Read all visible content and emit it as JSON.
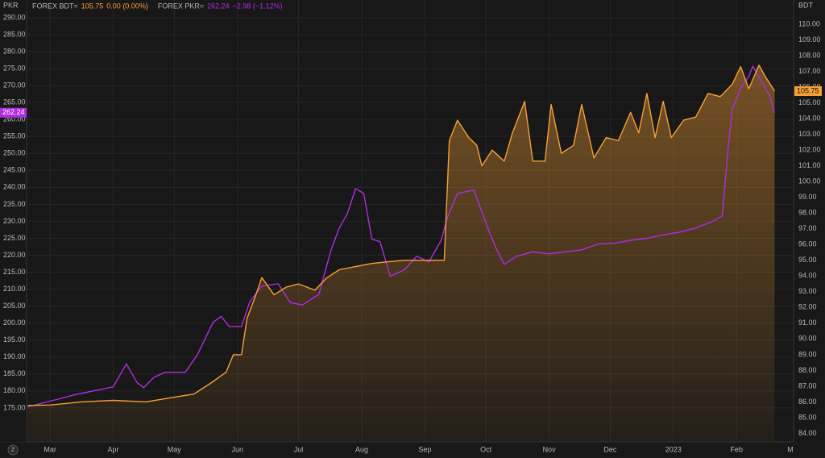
{
  "chart_data": {
    "type": "line",
    "legend": [
      {
        "name": "FOREX BDT=",
        "last": "105.75",
        "change": "0.00 (0.00%)",
        "color": "#f7a035"
      },
      {
        "name": "FOREX PKR=",
        "last": "262.24",
        "change": "−2.98 (−1.12%)",
        "color": "#b02ce0"
      }
    ],
    "y_axis_label": "PKR",
    "y2_axis_label": "BDT",
    "zoom_icon": "Z",
    "grid": true,
    "grid_color": "#262626",
    "background": "#181818",
    "xlim": [
      47.5,
      424
    ],
    "xticks": [
      {
        "value": 59,
        "label": "Mar"
      },
      {
        "value": 90,
        "label": "Apr"
      },
      {
        "value": 120,
        "label": "May"
      },
      {
        "value": 151,
        "label": "Jun"
      },
      {
        "value": 181,
        "label": "Jul"
      },
      {
        "value": 212,
        "label": "Aug"
      },
      {
        "value": 243,
        "label": "Sep"
      },
      {
        "value": 273,
        "label": "Oct"
      },
      {
        "value": 304,
        "label": "Nov"
      },
      {
        "value": 334,
        "label": "Dec"
      },
      {
        "value": 365,
        "label": "2023"
      },
      {
        "value": 396,
        "label": "Feb"
      },
      {
        "value": 424,
        "label": "Mar"
      }
    ],
    "ylim": [
      165,
      295.2
    ],
    "yticks": [
      {
        "value": 175,
        "label": "175.00"
      },
      {
        "value": 180,
        "label": "180.00"
      },
      {
        "value": 185,
        "label": "185.00"
      },
      {
        "value": 190,
        "label": "190.00"
      },
      {
        "value": 195,
        "label": "195.00"
      },
      {
        "value": 200,
        "label": "200.00"
      },
      {
        "value": 205,
        "label": "205.00"
      },
      {
        "value": 210,
        "label": "210.00"
      },
      {
        "value": 215,
        "label": "215.00"
      },
      {
        "value": 220,
        "label": "220.00"
      },
      {
        "value": 225,
        "label": "225.00"
      },
      {
        "value": 230,
        "label": "230.00"
      },
      {
        "value": 235,
        "label": "235.00"
      },
      {
        "value": 240,
        "label": "240.00"
      },
      {
        "value": 245,
        "label": "245.00"
      },
      {
        "value": 250,
        "label": "250.00"
      },
      {
        "value": 255,
        "label": "255.00"
      },
      {
        "value": 260,
        "label": "260.00"
      },
      {
        "value": 265,
        "label": "265.00"
      },
      {
        "value": 270,
        "label": "270.00"
      },
      {
        "value": 275,
        "label": "275.00"
      },
      {
        "value": 280,
        "label": "280.00"
      },
      {
        "value": 285,
        "label": "285.00"
      },
      {
        "value": 290,
        "label": "290.00"
      }
    ],
    "y2lim": [
      83.46,
      111.54
    ],
    "y2ticks": [
      {
        "value": 84,
        "label": "84.00"
      },
      {
        "value": 85,
        "label": "85.00"
      },
      {
        "value": 86,
        "label": "86.00"
      },
      {
        "value": 87,
        "label": "87.00"
      },
      {
        "value": 88,
        "label": "88.00"
      },
      {
        "value": 89,
        "label": "89.00"
      },
      {
        "value": 90,
        "label": "90.00"
      },
      {
        "value": 91,
        "label": "91.00"
      },
      {
        "value": 92,
        "label": "92.00"
      },
      {
        "value": 93,
        "label": "93.00"
      },
      {
        "value": 94,
        "label": "94.00"
      },
      {
        "value": 95,
        "label": "95.00"
      },
      {
        "value": 96,
        "label": "96.00"
      },
      {
        "value": 97,
        "label": "97.00"
      },
      {
        "value": 98,
        "label": "98.00"
      },
      {
        "value": 99,
        "label": "99.00"
      },
      {
        "value": 100,
        "label": "100.00"
      },
      {
        "value": 101,
        "label": "101.00"
      },
      {
        "value": 102,
        "label": "102.00"
      },
      {
        "value": 103,
        "label": "103.00"
      },
      {
        "value": 104,
        "label": "104.00"
      },
      {
        "value": 105,
        "label": "105.00"
      },
      {
        "value": 106,
        "label": "106.00"
      },
      {
        "value": 107,
        "label": "107.00"
      },
      {
        "value": 108,
        "label": "108.00"
      },
      {
        "value": 109,
        "label": "109.00"
      },
      {
        "value": 110,
        "label": "110.00"
      }
    ],
    "series": [
      {
        "name": "FOREX BDT=",
        "color": "#f7a035",
        "axis": "y2",
        "area": true,
        "x": [
          48,
          59,
          74.5,
          90,
          106,
          120,
          129.6,
          138,
          145.5,
          149,
          153,
          155.7,
          159.5,
          163,
          169,
          175,
          181,
          189,
          195,
          201,
          209,
          217,
          224.7,
          233,
          240,
          252.5,
          255,
          259,
          264.6,
          268.5,
          271,
          276,
          282,
          286,
          292,
          296,
          302,
          305,
          310,
          316,
          320,
          326,
          332,
          338,
          344,
          348,
          352,
          356,
          360,
          364,
          370,
          376,
          382,
          388,
          394,
          398,
          402,
          407,
          410,
          414.7
        ],
        "values": [
          85.77,
          85.8,
          86.0,
          86.1,
          86.0,
          86.3,
          86.5,
          87.2,
          87.9,
          89.0,
          89.0,
          91.3,
          92.6,
          93.9,
          92.8,
          93.3,
          93.5,
          93.1,
          93.9,
          94.4,
          94.6,
          94.8,
          94.9,
          95.0,
          95.0,
          95.0,
          102.6,
          103.9,
          102.8,
          102.3,
          101.0,
          102.0,
          101.3,
          103.1,
          105.1,
          101.3,
          101.3,
          104.9,
          101.8,
          102.3,
          104.9,
          101.5,
          102.8,
          102.6,
          104.4,
          103.1,
          105.6,
          102.8,
          105.1,
          102.8,
          103.9,
          104.1,
          105.6,
          105.4,
          106.2,
          107.3,
          105.9,
          107.4,
          106.7,
          105.75
        ]
      },
      {
        "name": "FOREX PKR=",
        "color": "#b02ce0",
        "x": [
          48,
          59,
          72,
          90,
          96.5,
          101.7,
          105,
          110,
          115.5,
          125.4,
          131.4,
          139,
          143,
          147,
          153,
          157,
          163,
          171,
          177,
          183,
          191,
          197,
          201,
          205,
          209,
          213,
          217,
          221,
          226,
          233,
          239,
          245,
          251,
          254,
          259,
          267,
          271,
          275,
          278,
          282,
          288,
          296,
          304,
          312,
          320,
          328,
          336,
          344,
          352,
          360,
          368,
          376,
          384,
          389,
          392,
          394,
          398,
          402,
          404,
          408,
          412,
          414.7
        ],
        "values": [
          175.3,
          177,
          179,
          181.2,
          188,
          182.5,
          181,
          184,
          185.5,
          185.5,
          190.7,
          200.2,
          202,
          199,
          199,
          206.2,
          210.9,
          211.6,
          206,
          205.4,
          208.5,
          221.6,
          228,
          232.3,
          239.6,
          238.2,
          224.7,
          224,
          213.8,
          215.7,
          219.7,
          218,
          224.4,
          231,
          238.2,
          239.2,
          232.8,
          226.3,
          222,
          217.3,
          219.7,
          221,
          220.4,
          221,
          221.6,
          223.3,
          223.5,
          224.4,
          225,
          226,
          226.8,
          228,
          229.9,
          231.6,
          252.5,
          263.2,
          269.1,
          272.7,
          275.7,
          271.5,
          267.2,
          262
        ]
      }
    ]
  }
}
